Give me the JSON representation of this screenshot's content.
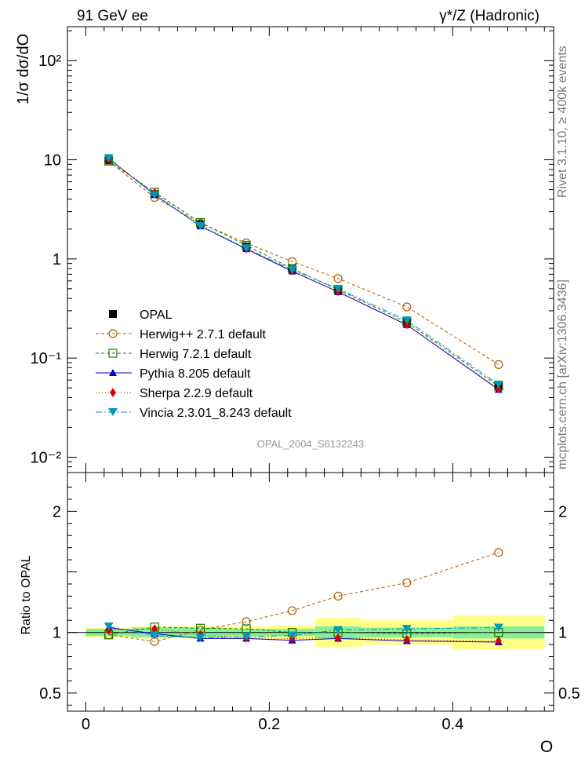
{
  "header": {
    "left_label": "91 GeV ee",
    "right_label": "γ*/Z (Hadronic)"
  },
  "side_labels": {
    "rivet": "Rivet 3.1.10, ≥ 400k events",
    "mcplots": "mcplots.cern.ch [arXiv:1306.3436]"
  },
  "chart_data": {
    "type": "line",
    "analysis_id": "OPAL_2004_S6132243",
    "upper": {
      "ylabel": "1/σ dσ/dO",
      "yscale": "log",
      "ylim": [
        0.007,
        220
      ],
      "ytick_labels": [
        "10⁻²",
        "10⁻¹",
        "1",
        "10",
        "10²"
      ],
      "ytick_values": [
        0.01,
        0.1,
        1,
        10,
        100
      ]
    },
    "lower": {
      "ylabel": "Ratio to OPAL",
      "ylim": [
        0.35,
        2.32
      ],
      "ytick_labels": [
        "0.5",
        "1",
        "2"
      ],
      "ytick_values": [
        0.5,
        1,
        2
      ]
    },
    "xaxis": {
      "xlabel": "O",
      "xlim": [
        -0.02,
        0.51
      ],
      "xtick_labels": [
        "0",
        "0.2",
        "0.4"
      ],
      "xtick_values": [
        0,
        0.2,
        0.4
      ]
    },
    "bins": [
      {
        "lo": 0.0,
        "hi": 0.05,
        "x": 0.025
      },
      {
        "lo": 0.05,
        "hi": 0.1,
        "x": 0.075
      },
      {
        "lo": 0.1,
        "hi": 0.15,
        "x": 0.125
      },
      {
        "lo": 0.15,
        "hi": 0.2,
        "x": 0.175
      },
      {
        "lo": 0.2,
        "hi": 0.25,
        "x": 0.225
      },
      {
        "lo": 0.25,
        "hi": 0.3,
        "x": 0.275
      },
      {
        "lo": 0.3,
        "hi": 0.4,
        "x": 0.35
      },
      {
        "lo": 0.4,
        "hi": 0.5,
        "x": 0.45
      }
    ],
    "data": {
      "name": "OPAL",
      "values": [
        9.9,
        4.5,
        2.25,
        1.33,
        0.8,
        0.49,
        0.232,
        0.052
      ],
      "stat_band": [
        0.03,
        0.04,
        0.04,
        0.03,
        0.03,
        0.05,
        0.04,
        0.05
      ],
      "total_band": [
        0.04,
        0.05,
        0.05,
        0.05,
        0.06,
        0.12,
        0.1,
        0.14
      ]
    },
    "series": [
      {
        "name": "Herwig++ 2.7.1 default",
        "color": "#b35c00",
        "dash": "4,3",
        "marker": "circle-open",
        "values": [
          9.7,
          4.17,
          2.29,
          1.45,
          0.94,
          0.635,
          0.328,
          0.086
        ],
        "ratio": [
          0.98,
          0.925,
          1.02,
          1.09,
          1.18,
          1.3,
          1.41,
          1.66
        ]
      },
      {
        "name": "Herwig 7.2.1 default",
        "color": "#1f7a00",
        "dash": "4,3",
        "marker": "square-open",
        "values": [
          9.7,
          4.7,
          2.33,
          1.37,
          0.8,
          0.49,
          0.23,
          0.052
        ],
        "ratio": [
          0.98,
          1.045,
          1.035,
          1.03,
          1.0,
          1.0,
          0.99,
          1.0
        ]
      },
      {
        "name": "Pythia 8.205 default",
        "color": "#0000cc",
        "dash": "",
        "marker": "triangle-up",
        "values": [
          10.3,
          4.45,
          2.14,
          1.26,
          0.75,
          0.465,
          0.216,
          0.048
        ],
        "ratio": [
          1.04,
          0.99,
          0.95,
          0.95,
          0.935,
          0.95,
          0.93,
          0.92
        ]
      },
      {
        "name": "Sherpa 2.2.9 default",
        "color": "#dd0000",
        "dash": "1,3",
        "marker": "diamond",
        "values": [
          10.1,
          4.65,
          2.2,
          1.27,
          0.76,
          0.47,
          0.218,
          0.049
        ],
        "ratio": [
          1.02,
          1.03,
          0.98,
          0.955,
          0.95,
          0.955,
          0.94,
          0.93
        ]
      },
      {
        "name": "Vincia 2.3.01_8.243 default",
        "color": "#0099bb",
        "dash": "8,3,2,3",
        "marker": "triangle-down",
        "values": [
          10.4,
          4.4,
          2.15,
          1.28,
          0.78,
          0.5,
          0.24,
          0.054
        ],
        "ratio": [
          1.05,
          0.975,
          0.955,
          0.965,
          0.975,
          1.02,
          1.03,
          1.04
        ]
      }
    ]
  }
}
